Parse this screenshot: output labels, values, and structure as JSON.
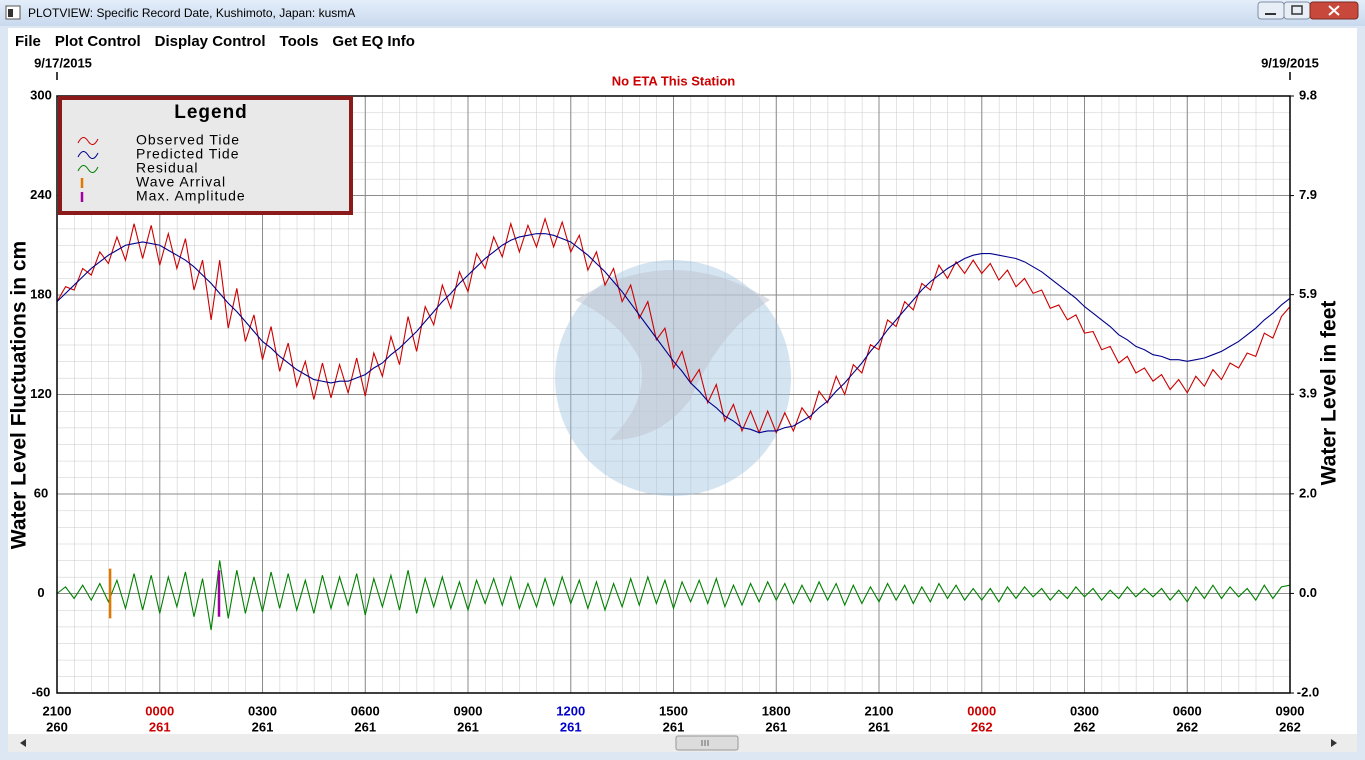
{
  "window": {
    "title": "PLOTVIEW: Specific Record Date, Kushimoto, Japan: kusmA",
    "menu": [
      "File",
      "Plot Control",
      "Display Control",
      "Tools",
      "Get EQ Info"
    ]
  },
  "chart_data": {
    "type": "line",
    "date_start": "9/17/2015",
    "date_end": "9/19/2015",
    "annotation": "No ETA This Station",
    "ylabel": "Water Level Fluctuations in cm",
    "y2label": "Water Level in feet",
    "legend_title": "Legend",
    "ylim": [
      -60,
      300
    ],
    "yticks": [
      -60,
      0,
      60,
      120,
      180,
      240,
      300
    ],
    "y2lim": [
      -1.97,
      9.84
    ],
    "y2ticks": [
      {
        "value": -1.97,
        "label": "-2.0"
      },
      {
        "value": 0,
        "label": "0.0"
      },
      {
        "value": 1.97,
        "label": "2.0"
      },
      {
        "value": 3.94,
        "label": "3.9"
      },
      {
        "value": 5.91,
        "label": "5.9"
      },
      {
        "value": 7.87,
        "label": "7.9"
      },
      {
        "value": 9.84,
        "label": "9.8"
      }
    ],
    "xlim": [
      0,
      36
    ],
    "xticks": [
      {
        "value": 0,
        "label": "2100",
        "day": "260",
        "color": "#000000"
      },
      {
        "value": 3,
        "label": "0000",
        "day": "261",
        "color": "#cc0000"
      },
      {
        "value": 6,
        "label": "0300",
        "day": "261",
        "color": "#000000"
      },
      {
        "value": 9,
        "label": "0600",
        "day": "261",
        "color": "#000000"
      },
      {
        "value": 12,
        "label": "0900",
        "day": "261",
        "color": "#000000"
      },
      {
        "value": 15,
        "label": "1200",
        "day": "261",
        "color": "#0000cc"
      },
      {
        "value": 18,
        "label": "1500",
        "day": "261",
        "color": "#000000"
      },
      {
        "value": 21,
        "label": "1800",
        "day": "261",
        "color": "#000000"
      },
      {
        "value": 24,
        "label": "2100",
        "day": "261",
        "color": "#000000"
      },
      {
        "value": 27,
        "label": "0000",
        "day": "262",
        "color": "#cc0000"
      },
      {
        "value": 30,
        "label": "0300",
        "day": "262",
        "color": "#000000"
      },
      {
        "value": 33,
        "label": "0600",
        "day": "262",
        "color": "#000000"
      },
      {
        "value": 36,
        "label": "0900",
        "day": "262",
        "color": "#000000"
      }
    ],
    "grid": true,
    "minor_divisions": 6,
    "x": [
      0,
      0.25,
      0.5,
      0.75,
      1,
      1.25,
      1.5,
      1.75,
      2,
      2.25,
      2.5,
      2.75,
      3,
      3.25,
      3.5,
      3.75,
      4,
      4.25,
      4.5,
      4.75,
      5,
      5.25,
      5.5,
      5.75,
      6,
      6.25,
      6.5,
      6.75,
      7,
      7.25,
      7.5,
      7.75,
      8,
      8.25,
      8.5,
      8.75,
      9,
      9.25,
      9.5,
      9.75,
      10,
      10.25,
      10.5,
      10.75,
      11,
      11.25,
      11.5,
      11.75,
      12,
      12.25,
      12.5,
      12.75,
      13,
      13.25,
      13.5,
      13.75,
      14,
      14.25,
      14.5,
      14.75,
      15,
      15.25,
      15.5,
      15.75,
      16,
      16.25,
      16.5,
      16.75,
      17,
      17.25,
      17.5,
      17.75,
      18,
      18.25,
      18.5,
      18.75,
      19,
      19.25,
      19.5,
      19.75,
      20,
      20.25,
      20.5,
      20.75,
      21,
      21.25,
      21.5,
      21.75,
      22,
      22.25,
      22.5,
      22.75,
      23,
      23.25,
      23.5,
      23.75,
      24,
      24.25,
      24.5,
      24.75,
      25,
      25.25,
      25.5,
      25.75,
      26,
      26.25,
      26.5,
      26.75,
      27,
      27.25,
      27.5,
      27.75,
      28,
      28.25,
      28.5,
      28.75,
      29,
      29.25,
      29.5,
      29.75,
      30,
      30.25,
      30.5,
      30.75,
      31,
      31.25,
      31.5,
      31.75,
      32,
      32.25,
      32.5,
      32.75,
      33,
      33.25,
      33.5,
      33.75,
      34,
      34.25,
      34.5,
      34.75,
      35,
      35.25,
      35.5,
      35.75,
      36
    ],
    "series": [
      {
        "name": "Observed Tide",
        "color": "#cc0000",
        "values": [
          176,
          185,
          183,
          196,
          192,
          206,
          199,
          215,
          201,
          223,
          202,
          222,
          198,
          217,
          196,
          214,
          183,
          201,
          165,
          201,
          160,
          184,
          152,
          168,
          141,
          161,
          134,
          151,
          125,
          140,
          117,
          139,
          118,
          138,
          121,
          142,
          119,
          145,
          131,
          155,
          138,
          167,
          146,
          173,
          162,
          186,
          172,
          194,
          182,
          205,
          196,
          215,
          203,
          223,
          206,
          222,
          209,
          226,
          209,
          224,
          206,
          216,
          195,
          206,
          186,
          196,
          176,
          186,
          166,
          176,
          153,
          160,
          136,
          146,
          127,
          135,
          115,
          126,
          104,
          114,
          98,
          110,
          97,
          110,
          97,
          109,
          98,
          112,
          105,
          122,
          115,
          131,
          120,
          138,
          133,
          150,
          147,
          165,
          161,
          176,
          171,
          187,
          183,
          198,
          190,
          200,
          193,
          201,
          193,
          199,
          189,
          195,
          185,
          190,
          181,
          183,
          172,
          174,
          165,
          168,
          157,
          158,
          147,
          149,
          139,
          143,
          133,
          136,
          128,
          132,
          123,
          129,
          121,
          131,
          125,
          135,
          129,
          139,
          136,
          145,
          143,
          157,
          154,
          167,
          173
        ]
      },
      {
        "name": "Predicted Tide",
        "color": "#00008b",
        "values": [
          176,
          181,
          186,
          191,
          196,
          200,
          204,
          207,
          210,
          211,
          212,
          211,
          210,
          207,
          204,
          201,
          197,
          192,
          187,
          181,
          175,
          170,
          164,
          158,
          152,
          148,
          143,
          139,
          135,
          132,
          129,
          128,
          127,
          128,
          128,
          130,
          132,
          136,
          139,
          144,
          148,
          153,
          158,
          164,
          170,
          176,
          181,
          187,
          192,
          197,
          202,
          206,
          210,
          213,
          215,
          216,
          217,
          217,
          216,
          214,
          212,
          208,
          204,
          199,
          194,
          188,
          182,
          175,
          168,
          161,
          154,
          147,
          140,
          134,
          127,
          122,
          116,
          112,
          107,
          104,
          100,
          99,
          97,
          98,
          98,
          100,
          101,
          104,
          107,
          112,
          116,
          122,
          127,
          133,
          139,
          146,
          152,
          159,
          165,
          171,
          177,
          183,
          188,
          192,
          196,
          199,
          202,
          204,
          205,
          205,
          204,
          203,
          202,
          200,
          197,
          194,
          190,
          186,
          182,
          178,
          173,
          169,
          165,
          161,
          156,
          153,
          149,
          147,
          144,
          143,
          141,
          141,
          140,
          141,
          142,
          144,
          146,
          149,
          152,
          156,
          160,
          165,
          169,
          174,
          178
        ]
      },
      {
        "name": "Residual",
        "color": "#008000",
        "values": [
          0,
          4,
          -3,
          5,
          -4,
          6,
          -5,
          8,
          -9,
          12,
          -10,
          11,
          -12,
          10,
          -8,
          13,
          -14,
          9,
          -22,
          20,
          -15,
          14,
          -12,
          10,
          -11,
          13,
          -9,
          12,
          -10,
          8,
          -12,
          11,
          -9,
          10,
          -7,
          12,
          -13,
          9,
          -8,
          11,
          -10,
          14,
          -12,
          9,
          -8,
          10,
          -9,
          7,
          -10,
          8,
          -6,
          9,
          -7,
          10,
          -9,
          6,
          -8,
          9,
          -7,
          10,
          -6,
          8,
          -9,
          7,
          -10,
          6,
          -8,
          9,
          -7,
          10,
          -6,
          8,
          -9,
          7,
          -5,
          8,
          -6,
          9,
          -8,
          5,
          -7,
          6,
          -5,
          7,
          -4,
          6,
          -6,
          5,
          -5,
          7,
          -4,
          6,
          -7,
          5,
          -6,
          4,
          -5,
          6,
          -4,
          5,
          -6,
          4,
          -5,
          6,
          -3,
          5,
          -4,
          3,
          -4,
          3,
          -5,
          4,
          -3,
          4,
          -2,
          3,
          -4,
          2,
          -3,
          4,
          -2,
          3,
          -4,
          2,
          -3,
          4,
          -2,
          3,
          -2,
          3,
          -4,
          2,
          -5,
          4,
          -3,
          5,
          -3,
          4,
          -2,
          3,
          -4,
          5,
          -3,
          4,
          5
        ]
      }
    ],
    "markers": [
      {
        "name": "Wave Arrival",
        "color": "#e07800",
        "x": 1.55,
        "range": [
          -15,
          15
        ]
      },
      {
        "name": "Max. Amplitude",
        "color": "#a000a0",
        "x": 4.73,
        "range": [
          -14,
          14
        ]
      }
    ]
  }
}
